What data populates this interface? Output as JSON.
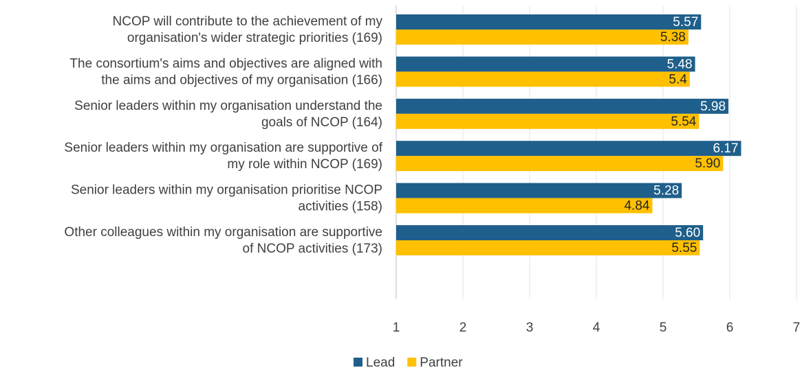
{
  "chart_data": {
    "type": "bar",
    "orientation": "horizontal",
    "categories": [
      [
        "NCOP will contribute to the achievement of my",
        "organisation's wider strategic priorities (169)"
      ],
      [
        "The consortium's aims and objectives are aligned with",
        "the aims and objectives of my organisation (166)"
      ],
      [
        "Senior leaders within my organisation understand the",
        "goals of NCOP (164)"
      ],
      [
        "Senior leaders within my organisation are supportive of",
        "my role within NCOP (169)"
      ],
      [
        "Senior leaders within my organisation prioritise NCOP",
        "activities (158)"
      ],
      [
        "Other colleagues within my organisation are supportive",
        "of NCOP activities (173)"
      ]
    ],
    "series": [
      {
        "name": "Lead",
        "color": "#1F5F8B",
        "values": [
          5.57,
          5.48,
          5.98,
          6.17,
          5.28,
          5.6
        ],
        "labels": [
          "5.57",
          "5.48",
          "5.98",
          "6.17",
          "5.28",
          "5.60"
        ]
      },
      {
        "name": "Partner",
        "color": "#FFC000",
        "values": [
          5.38,
          5.4,
          5.54,
          5.9,
          4.84,
          5.55
        ],
        "labels": [
          "5.38",
          "5.4",
          "5.54",
          "5.90",
          "4.84",
          "5.55"
        ]
      }
    ],
    "xlim": [
      1,
      7
    ],
    "xticks": [
      "1",
      "2",
      "3",
      "4",
      "5",
      "6",
      "7"
    ],
    "grid": "vertical",
    "legend_position": "bottom"
  }
}
